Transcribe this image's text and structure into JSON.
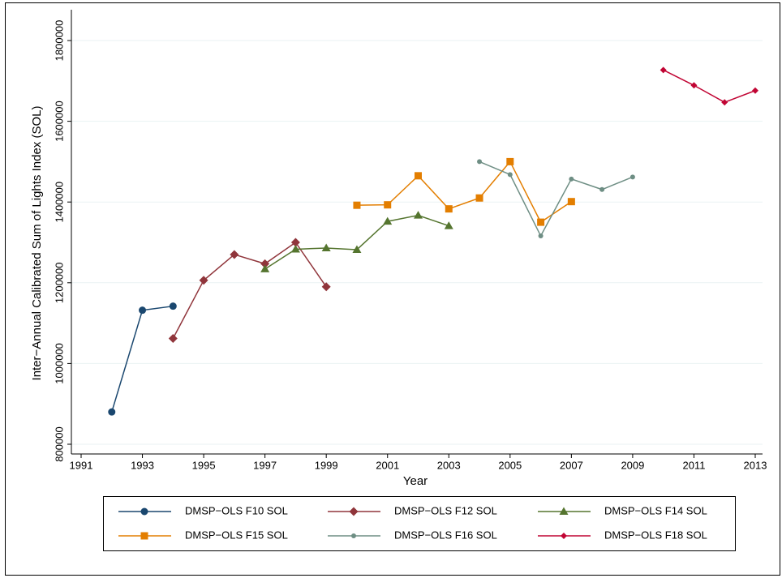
{
  "chart_data": {
    "type": "line",
    "x_label": "Year",
    "y_label": "Inter−Annual Calibrated Sum of Lights Index (SOL)",
    "xlim": [
      1991,
      2013
    ],
    "xticks": [
      1991,
      1993,
      1995,
      1997,
      1999,
      2001,
      2003,
      2005,
      2007,
      2009,
      2011,
      2013
    ],
    "ylim": [
      800000,
      1800000
    ],
    "yticks": [
      800000,
      1000000,
      1200000,
      1400000,
      1600000,
      1800000
    ],
    "grid": true,
    "legend": "bottom",
    "series": [
      {
        "name": "DMSP−OLS F10 SOL",
        "color": "#1a476f",
        "marker": "circle",
        "x": [
          1992,
          1993,
          1994
        ],
        "values": [
          880000,
          1132000,
          1142000
        ]
      },
      {
        "name": "DMSP−OLS F12 SOL",
        "color": "#90353b",
        "marker": "diamond",
        "x": [
          1994,
          1995,
          1996,
          1997,
          1998,
          1999
        ],
        "values": [
          1062000,
          1206000,
          1270000,
          1247000,
          1300000,
          1190000
        ]
      },
      {
        "name": "DMSP−OLS F14 SOL",
        "color": "#55752f",
        "marker": "triangle",
        "x": [
          1997,
          1998,
          1999,
          2000,
          2001,
          2002,
          2003
        ],
        "values": [
          1234000,
          1283000,
          1286000,
          1282000,
          1352000,
          1367000,
          1341000
        ]
      },
      {
        "name": "DMSP−OLS F15 SOL",
        "color": "#e37e00",
        "marker": "square",
        "x": [
          2000,
          2001,
          2002,
          2003,
          2004,
          2005,
          2006,
          2007
        ],
        "values": [
          1392000,
          1393000,
          1465000,
          1383000,
          1410000,
          1500000,
          1350000,
          1401000
        ]
      },
      {
        "name": "DMSP−OLS F16 SOL",
        "color": "#6e8e84",
        "marker": "small-circle",
        "x": [
          2004,
          2005,
          2006,
          2007,
          2008,
          2009
        ],
        "values": [
          1500000,
          1468000,
          1316000,
          1457000,
          1431000,
          1462000
        ]
      },
      {
        "name": "DMSP−OLS F18 SOL",
        "color": "#c10534",
        "marker": "small-diamond",
        "x": [
          2010,
          2011,
          2012,
          2013
        ],
        "values": [
          1727000,
          1689000,
          1647000,
          1676000
        ]
      }
    ]
  }
}
